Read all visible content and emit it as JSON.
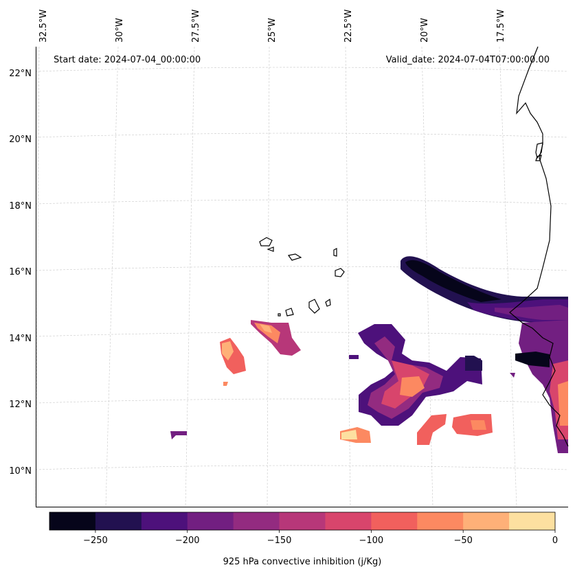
{
  "header": {
    "start_date": "Start date: 2024-07-04_00:00:00",
    "valid_date": "Valid_date: 2024-07-04T07:00:00.00"
  },
  "lon_labels": [
    "32.5°W",
    "30°W",
    "27.5°W",
    "25°W",
    "22.5°W",
    "20°W",
    "17.5°W"
  ],
  "lat_labels": [
    "22°N",
    "20°N",
    "18°N",
    "16°N",
    "14°N",
    "12°N",
    "10°N"
  ],
  "colorbar": {
    "label": "925 hPa convective inhibition (j/Kg)",
    "levels": [
      -275,
      -250,
      -225,
      -200,
      -175,
      -150,
      -125,
      -100,
      -75,
      -50,
      -25,
      0
    ],
    "tick_labels": [
      "−250",
      "−200",
      "−150",
      "−100",
      "−50",
      "0"
    ],
    "colors": [
      "#06051a",
      "#221150",
      "#4d117b",
      "#721f81",
      "#932b80",
      "#b73779",
      "#d8456c",
      "#f1605d",
      "#fc8961",
      "#feb078",
      "#fde0a0"
    ]
  },
  "colors": {
    "gridline": "#cccccc",
    "coastline": "#000000"
  }
}
